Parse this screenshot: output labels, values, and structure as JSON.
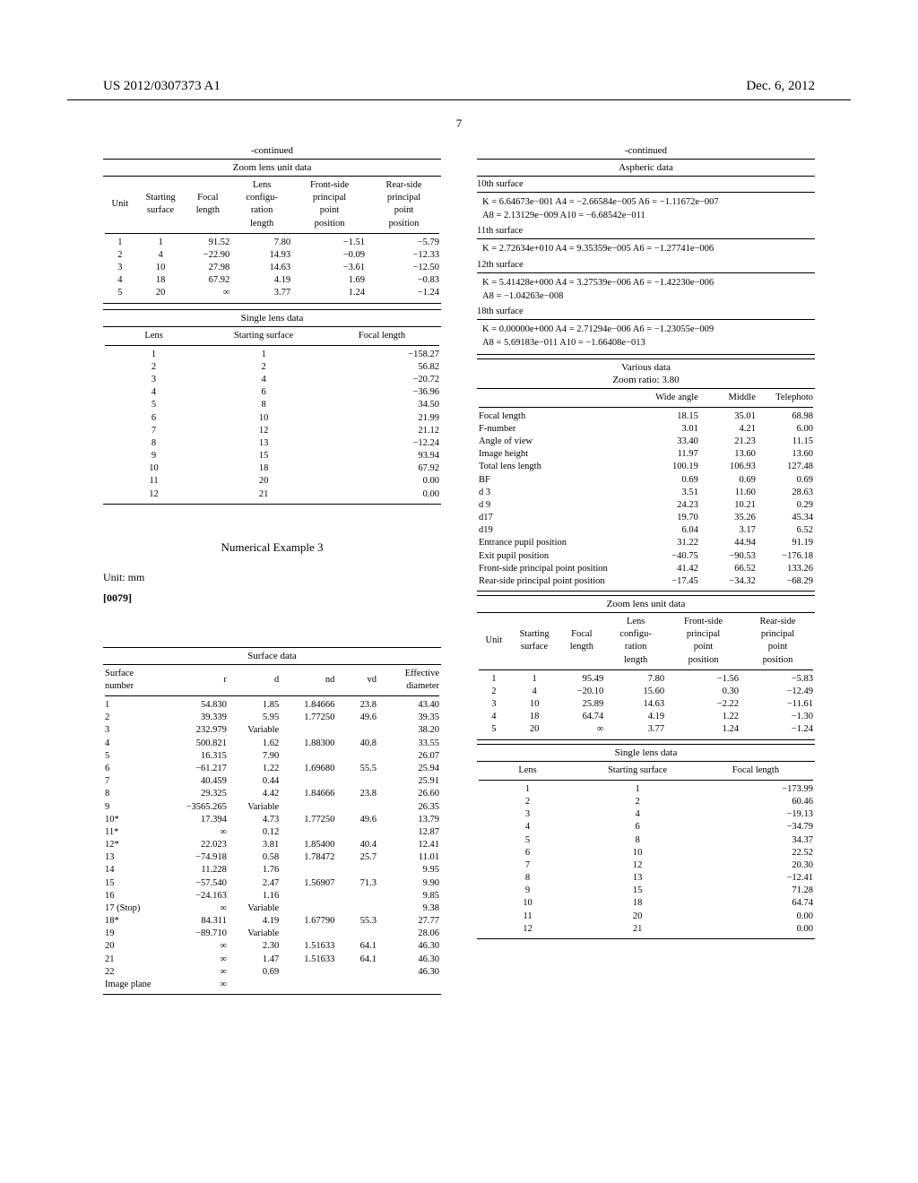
{
  "header": {
    "left": "US 2012/0307373 A1",
    "right": "Dec. 6, 2012"
  },
  "page_number": "7",
  "continued": "-continued",
  "zoom_lens_unit_1": {
    "title": "Zoom lens unit data",
    "columns": [
      "Unit",
      "Starting surface",
      "Focal length",
      "Lens configu- ration length",
      "Front-side principal point position",
      "Rear-side principal point position"
    ],
    "rows": [
      [
        "1",
        "1",
        "91.52",
        "7.80",
        "−1.51",
        "−5.79"
      ],
      [
        "2",
        "4",
        "−22.90",
        "14.93",
        "−0.09",
        "−12.33"
      ],
      [
        "3",
        "10",
        "27.98",
        "14.63",
        "−3.61",
        "−12.50"
      ],
      [
        "4",
        "18",
        "67.92",
        "4.19",
        "1.69",
        "−0.83"
      ],
      [
        "5",
        "20",
        "∞",
        "3.77",
        "1.24",
        "−1.24"
      ]
    ]
  },
  "single_lens_1": {
    "title": "Single lens data",
    "columns": [
      "Lens",
      "Starting surface",
      "Focal length"
    ],
    "rows": [
      [
        "1",
        "1",
        "−158.27"
      ],
      [
        "2",
        "2",
        "56.82"
      ],
      [
        "3",
        "4",
        "−20.72"
      ],
      [
        "4",
        "6",
        "−36.96"
      ],
      [
        "5",
        "8",
        "34.50"
      ],
      [
        "6",
        "10",
        "21.99"
      ],
      [
        "7",
        "12",
        "21.12"
      ],
      [
        "8",
        "13",
        "−12.24"
      ],
      [
        "9",
        "15",
        "93.94"
      ],
      [
        "10",
        "18",
        "67.92"
      ],
      [
        "11",
        "20",
        "0.00"
      ],
      [
        "12",
        "21",
        "0.00"
      ]
    ]
  },
  "numerical_example_label": "Numerical Example 3",
  "unit_mm": "Unit: mm",
  "para_num": "[0079]",
  "surface_data": {
    "title": "Surface data",
    "columns": [
      "Surface number",
      "r",
      "d",
      "nd",
      "vd",
      "Effective diameter"
    ],
    "rows": [
      [
        "1",
        "54.830",
        "1.85",
        "1.84666",
        "23.8",
        "43.40"
      ],
      [
        "2",
        "39.339",
        "5.95",
        "1.77250",
        "49.6",
        "39.35"
      ],
      [
        "3",
        "232.979",
        "Variable",
        "",
        "",
        "38.20"
      ],
      [
        "4",
        "500.821",
        "1.62",
        "1.88300",
        "40.8",
        "33.55"
      ],
      [
        "5",
        "16.315",
        "7.90",
        "",
        "",
        "26.07"
      ],
      [
        "6",
        "−61.217",
        "1.22",
        "1.69680",
        "55.5",
        "25.94"
      ],
      [
        "7",
        "40.459",
        "0.44",
        "",
        "",
        "25.91"
      ],
      [
        "8",
        "29.325",
        "4.42",
        "1.84666",
        "23.8",
        "26.60"
      ],
      [
        "9",
        "−3565.265",
        "Variable",
        "",
        "",
        "26.35"
      ],
      [
        "10*",
        "17.394",
        "4.73",
        "1.77250",
        "49.6",
        "13.79"
      ],
      [
        "11*",
        "∞",
        "0.12",
        "",
        "",
        "12.87"
      ],
      [
        "12*",
        "22.023",
        "3.81",
        "1.85400",
        "40.4",
        "12.41"
      ],
      [
        "13",
        "−74.918",
        "0.58",
        "1.78472",
        "25.7",
        "11.01"
      ],
      [
        "14",
        "11.228",
        "1.76",
        "",
        "",
        "9.95"
      ],
      [
        "15",
        "−57.540",
        "2.47",
        "1.56907",
        "71.3",
        "9.90"
      ],
      [
        "16",
        "−24.163",
        "1.16",
        "",
        "",
        "9.85"
      ],
      [
        "17 (Stop)",
        "∞",
        "Variable",
        "",
        "",
        "9.38"
      ],
      [
        "18*",
        "84.311",
        "4.19",
        "1.67790",
        "55.3",
        "27.77"
      ],
      [
        "19",
        "−89.710",
        "Variable",
        "",
        "",
        "28.06"
      ],
      [
        "20",
        "∞",
        "2.30",
        "1.51633",
        "64.1",
        "46.30"
      ],
      [
        "21",
        "∞",
        "1.47",
        "1.51633",
        "64.1",
        "46.30"
      ],
      [
        "22",
        "∞",
        "0.69",
        "",
        "",
        "46.30"
      ],
      [
        "Image plane",
        "∞",
        "",
        "",
        "",
        ""
      ]
    ]
  },
  "aspheric": {
    "title": "Aspheric data",
    "s10": {
      "label": "10th surface",
      "l1": "K = 6.64673e−001 A4 = −2.66584e−005 A6 = −1.11672e−007",
      "l2": "A8 = 2.13129e−009 A10 = −6.68542e−011"
    },
    "s11": {
      "label": "11th surface",
      "l1": "K = 2.72634e+010 A4 = 9.35359e−005 A6 = −1.27741e−006"
    },
    "s12": {
      "label": "12th surface",
      "l1": "K = 5.41428e+000 A4 = 3.27539e−006 A6 = −1.42230e−006",
      "l2": "A8 = −1.04263e−008"
    },
    "s18": {
      "label": "18th surface",
      "l1": "K = 0.00000e+000 A4 = 2.71294e−006 A6 = −1.23055e−009",
      "l2": "A8 = 5.69183e−011 A10 = −1.66408e−013"
    }
  },
  "various_data": {
    "title1": "Various data",
    "title2": "Zoom ratio: 3.80",
    "columns": [
      "",
      "Wide angle",
      "Middle",
      "Telephoto"
    ],
    "rows": [
      [
        "Focal length",
        "18.15",
        "35.01",
        "68.98"
      ],
      [
        "F-number",
        "3.01",
        "4.21",
        "6.00"
      ],
      [
        "Angle of view",
        "33.40",
        "21.23",
        "11.15"
      ],
      [
        "Image height",
        "11.97",
        "13.60",
        "13.60"
      ],
      [
        "Total lens length",
        "100.19",
        "106.93",
        "127.48"
      ],
      [
        "BF",
        "0.69",
        "0.69",
        "0.69"
      ],
      [
        "d 3",
        "3.51",
        "11.60",
        "28.63"
      ],
      [
        "d 9",
        "24.23",
        "10.21",
        "0.29"
      ],
      [
        "d17",
        "19.70",
        "35.26",
        "45.34"
      ],
      [
        "d19",
        "6.04",
        "3.17",
        "6.52"
      ],
      [
        "Entrance pupil position",
        "31.22",
        "44.94",
        "91.19"
      ],
      [
        "Exit pupil position",
        "−40.75",
        "−90.53",
        "−176.18"
      ],
      [
        "Front-side principal point position",
        "41.42",
        "66.52",
        "133.26"
      ],
      [
        "Rear-side principal point position",
        "−17.45",
        "−34.32",
        "−68.29"
      ]
    ]
  },
  "zoom_lens_unit_2": {
    "title": "Zoom lens unit data",
    "columns": [
      "Unit",
      "Starting surface",
      "Focal length",
      "Lens configu- ration length",
      "Front-side principal point position",
      "Rear-side principal point position"
    ],
    "rows": [
      [
        "1",
        "1",
        "95.49",
        "7.80",
        "−1.56",
        "−5.83"
      ],
      [
        "2",
        "4",
        "−20.10",
        "15.60",
        "0.30",
        "−12.49"
      ],
      [
        "3",
        "10",
        "25.89",
        "14.63",
        "−2.22",
        "−11.61"
      ],
      [
        "4",
        "18",
        "64.74",
        "4.19",
        "1.22",
        "−1.30"
      ],
      [
        "5",
        "20",
        "∞",
        "3.77",
        "1.24",
        "−1.24"
      ]
    ]
  },
  "single_lens_2": {
    "title": "Single lens data",
    "columns": [
      "Lens",
      "Starting surface",
      "Focal length"
    ],
    "rows": [
      [
        "1",
        "1",
        "−173.99"
      ],
      [
        "2",
        "2",
        "60.46"
      ],
      [
        "3",
        "4",
        "−19.13"
      ],
      [
        "4",
        "6",
        "−34.79"
      ],
      [
        "5",
        "8",
        "34.37"
      ],
      [
        "6",
        "10",
        "22.52"
      ],
      [
        "7",
        "12",
        "20.30"
      ],
      [
        "8",
        "13",
        "−12.41"
      ],
      [
        "9",
        "15",
        "71.28"
      ],
      [
        "10",
        "18",
        "64.74"
      ],
      [
        "11",
        "20",
        "0.00"
      ],
      [
        "12",
        "21",
        "0.00"
      ]
    ]
  }
}
